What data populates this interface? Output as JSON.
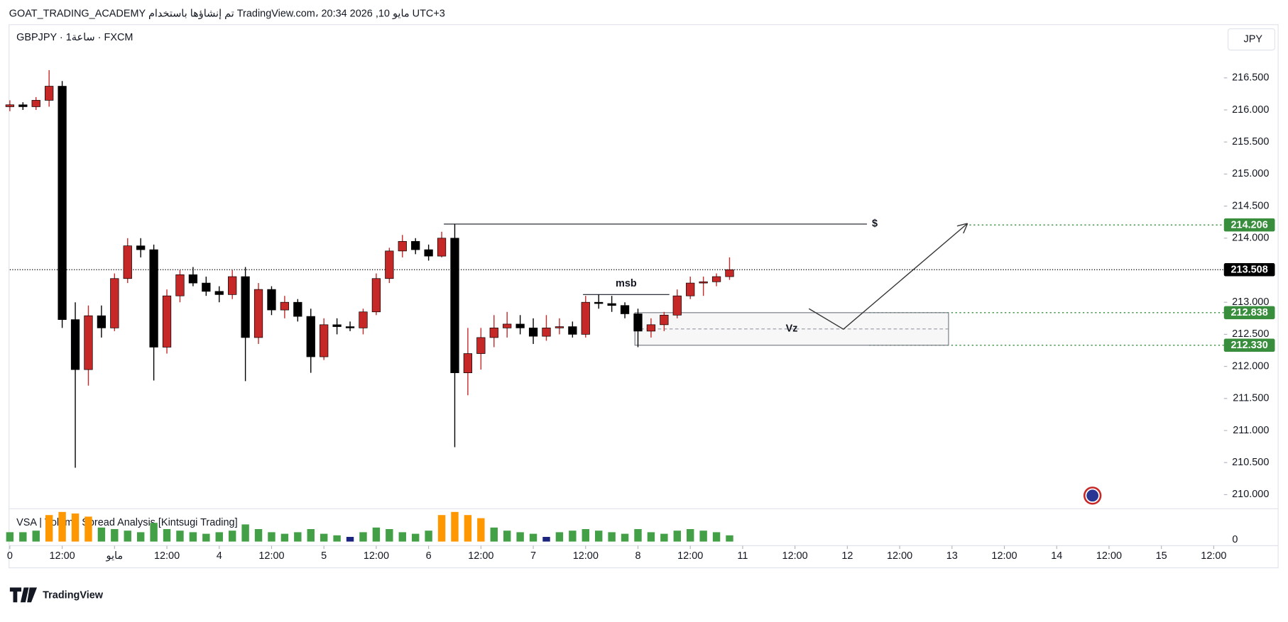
{
  "header": {
    "title": "GOAT_TRADING_ACADEMY تم إنشاؤها باستخدام TradingView.com، 20:34 2026 ,10 مايو UTC+3",
    "symbol": "GBPJPY · 1ساعة · FXCM",
    "currency": "JPY"
  },
  "chart_data": {
    "type": "candlestick",
    "x": [
      0,
      3,
      6,
      9,
      12,
      15,
      18,
      21,
      24,
      27,
      30,
      33,
      36,
      39,
      42,
      45,
      48,
      51,
      54,
      57,
      60,
      63,
      66,
      69,
      72,
      75,
      78,
      81,
      84,
      87,
      90,
      93,
      96,
      99,
      102,
      105,
      108,
      111,
      114,
      117,
      120,
      123,
      126,
      129,
      132,
      135,
      138,
      141,
      144,
      147,
      150,
      153,
      156,
      159,
      162,
      165
    ],
    "open": [
      216.05,
      216.08,
      216.05,
      216.15,
      216.37,
      212.73,
      211.95,
      212.79,
      212.6,
      213.37,
      213.88,
      213.82,
      212.3,
      213.1,
      213.43,
      213.3,
      213.17,
      213.12,
      213.4,
      212.45,
      213.2,
      212.88,
      213.0,
      212.78,
      212.15,
      212.65,
      212.62,
      212.6,
      212.85,
      213.37,
      213.8,
      213.95,
      213.82,
      213.72,
      214.0,
      211.9,
      212.2,
      212.45,
      212.6,
      212.66,
      212.6,
      212.47,
      212.6,
      212.62,
      212.5,
      213.0,
      212.98,
      212.95,
      212.82,
      212.55,
      212.65,
      212.8,
      213.1,
      213.3,
      213.32,
      213.4
    ],
    "high": [
      216.15,
      216.12,
      216.2,
      216.62,
      216.45,
      213.0,
      212.95,
      212.95,
      213.45,
      214.0,
      214.0,
      213.9,
      213.2,
      213.5,
      213.55,
      213.4,
      213.25,
      213.5,
      213.55,
      213.3,
      213.25,
      213.1,
      213.05,
      212.9,
      212.75,
      212.75,
      212.7,
      212.9,
      213.45,
      213.85,
      214.05,
      214.0,
      213.9,
      214.1,
      214.22,
      212.6,
      212.6,
      212.8,
      212.85,
      212.8,
      212.75,
      212.8,
      212.75,
      212.7,
      213.1,
      213.12,
      213.1,
      213.0,
      212.9,
      212.75,
      212.85,
      213.2,
      213.4,
      213.4,
      213.45,
      213.7
    ],
    "low": [
      215.98,
      216.0,
      216.0,
      216.05,
      212.6,
      210.42,
      211.7,
      212.45,
      212.55,
      213.3,
      213.7,
      211.78,
      212.2,
      213.0,
      213.25,
      213.1,
      213.0,
      213.05,
      211.77,
      212.35,
      212.8,
      212.75,
      212.7,
      211.9,
      212.1,
      212.5,
      212.55,
      212.5,
      212.8,
      213.3,
      213.7,
      213.75,
      213.65,
      213.7,
      210.74,
      211.55,
      211.95,
      212.3,
      212.45,
      212.5,
      212.35,
      212.4,
      212.5,
      212.45,
      212.45,
      212.9,
      212.85,
      212.75,
      212.3,
      212.45,
      212.55,
      212.75,
      213.05,
      213.1,
      213.25,
      213.35
    ],
    "close": [
      216.08,
      216.05,
      216.15,
      216.37,
      212.73,
      211.95,
      212.79,
      212.6,
      213.37,
      213.88,
      213.82,
      212.3,
      213.1,
      213.43,
      213.3,
      213.17,
      213.12,
      213.4,
      212.45,
      213.2,
      212.88,
      213.0,
      212.78,
      212.15,
      212.65,
      212.62,
      212.6,
      212.85,
      213.37,
      213.8,
      213.95,
      213.82,
      213.72,
      214.0,
      211.9,
      212.2,
      212.45,
      212.6,
      212.66,
      212.6,
      212.47,
      212.6,
      212.62,
      212.5,
      213.0,
      212.98,
      212.95,
      212.82,
      212.55,
      212.65,
      212.8,
      213.1,
      213.3,
      213.32,
      213.4,
      213.508
    ],
    "up_color": "#c62828",
    "down_color": "#000000",
    "xlim": [
      0,
      279
    ],
    "xticks": [
      0,
      {
        "value": 12,
        "label": "12:00"
      },
      {
        "value": 24,
        "label": "مايو"
      },
      {
        "value": 36,
        "label": "12:00"
      },
      {
        "value": 48,
        "label": "4"
      },
      {
        "value": 60,
        "label": "12:00"
      },
      {
        "value": 72,
        "label": "5"
      },
      {
        "value": 84,
        "label": "12:00"
      },
      {
        "value": 96,
        "label": "6"
      },
      {
        "value": 108,
        "label": "12:00"
      },
      {
        "value": 120,
        "label": "7"
      },
      {
        "value": 132,
        "label": "12:00"
      },
      {
        "value": 144,
        "label": "8"
      },
      {
        "value": 156,
        "label": "12:00"
      },
      {
        "value": 168,
        "label": "11"
      },
      {
        "value": 180,
        "label": "12:00"
      },
      {
        "value": 192,
        "label": "12"
      },
      {
        "value": 204,
        "label": "12:00"
      },
      {
        "value": 216,
        "label": "13"
      },
      {
        "value": 228,
        "label": "12:00"
      },
      {
        "value": 240,
        "label": "14"
      },
      {
        "value": 252,
        "label": "12:00"
      },
      {
        "value": 264,
        "label": "15"
      },
      {
        "value": 276,
        "label": "12:00"
      }
    ],
    "ylim": [
      209.78,
      217.33
    ],
    "yticks": [
      {
        "value": 210,
        "label": "210.000"
      },
      {
        "value": 210.5,
        "label": "210.500"
      },
      {
        "value": 211,
        "label": "211.000"
      },
      {
        "value": 211.5,
        "label": "211.500"
      },
      {
        "value": 212,
        "label": "212.000"
      },
      {
        "value": 212.5,
        "label": "212.500"
      },
      {
        "value": 213,
        "label": "213.000"
      },
      {
        "value": 213.5,
        "label": "213.500"
      },
      {
        "value": 214,
        "label": "214.000"
      },
      {
        "value": 214.5,
        "label": "214.500"
      },
      {
        "value": 215,
        "label": "215.000"
      },
      {
        "value": 215.5,
        "label": "215.500"
      },
      {
        "value": 216,
        "label": "216.000"
      },
      {
        "value": 216.5,
        "label": "216.500"
      }
    ],
    "last_price": {
      "value": 213.508,
      "label": "213.508",
      "color": "#000000"
    },
    "levels": [
      {
        "value": 214.206,
        "label": "214.206",
        "color": "#388e3c",
        "x_from": 220
      },
      {
        "value": 212.838,
        "label": "212.838",
        "color": "#388e3c",
        "x_from": 197
      },
      {
        "value": 212.33,
        "label": "212.330",
        "color": "#388e3c",
        "x_from": 197
      }
    ],
    "drawings": [
      {
        "type": "hline",
        "label": "$",
        "label_at": "end",
        "y": 214.22,
        "x": [
          99.5,
          196.5
        ]
      },
      {
        "type": "hline",
        "label": "msb",
        "label_at": "top",
        "y": 213.12,
        "x": [
          131.4,
          151.2
        ]
      },
      {
        "type": "box",
        "label": "Vz",
        "y": [
          212.33,
          212.838
        ],
        "x": [
          143.3,
          215.2
        ]
      },
      {
        "type": "arrow",
        "x": [
          183.2,
          191.1,
          219.4
        ],
        "y": [
          212.9,
          212.58,
          214.22
        ]
      }
    ],
    "volume": {
      "name": "VSA | Volume Spread Analysis [Kintsugi Trading]",
      "ylim": [
        0,
        100
      ],
      "yticks": [
        0
      ],
      "values": [
        30,
        30,
        35,
        85,
        95,
        90,
        80,
        45,
        40,
        35,
        30,
        60,
        40,
        35,
        30,
        25,
        30,
        35,
        55,
        40,
        30,
        25,
        30,
        40,
        25,
        20,
        15,
        30,
        45,
        40,
        30,
        25,
        35,
        85,
        95,
        85,
        75,
        45,
        35,
        30,
        25,
        15,
        30,
        35,
        40,
        35,
        30,
        25,
        40,
        30,
        25,
        35,
        40,
        35,
        30,
        20
      ],
      "colors": [
        "#43a047",
        "#43a047",
        "#43a047",
        "#ff9800",
        "#ff9800",
        "#ff9800",
        "#ff9800",
        "#43a047",
        "#43a047",
        "#43a047",
        "#43a047",
        "#43a047",
        "#43a047",
        "#43a047",
        "#43a047",
        "#43a047",
        "#43a047",
        "#43a047",
        "#43a047",
        "#43a047",
        "#43a047",
        "#43a047",
        "#43a047",
        "#43a047",
        "#43a047",
        "#43a047",
        "#1a237e",
        "#43a047",
        "#43a047",
        "#43a047",
        "#43a047",
        "#43a047",
        "#43a047",
        "#ff9800",
        "#ff9800",
        "#ff9800",
        "#ff9800",
        "#43a047",
        "#43a047",
        "#43a047",
        "#43a047",
        "#1a237e",
        "#43a047",
        "#43a047",
        "#43a047",
        "#43a047",
        "#43a047",
        "#43a047",
        "#43a047",
        "#43a047",
        "#43a047",
        "#43a047",
        "#43a047",
        "#43a047",
        "#43a047",
        "#43a047"
      ]
    }
  },
  "footer": {
    "logo": "TradingView"
  }
}
